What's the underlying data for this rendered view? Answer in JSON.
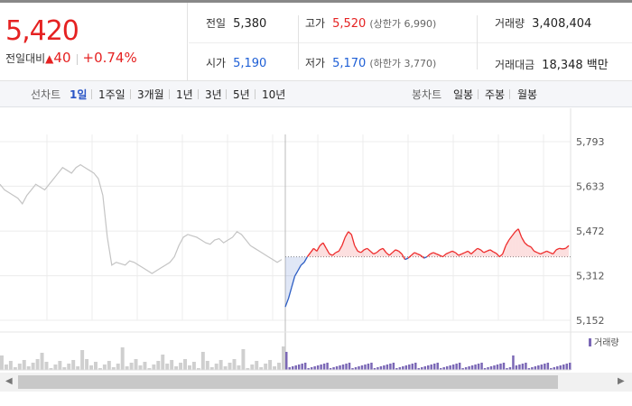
{
  "quote": {
    "price": "5,420",
    "change_label": "전일대비",
    "change_arrow": "▲",
    "change_value": "40",
    "change_pct": "+0.74%"
  },
  "stats": {
    "prev_close_label": "전일",
    "prev_close": "5,380",
    "high_label": "고가",
    "high": "5,520",
    "upper_limit": "(상한가 6,990)",
    "volume_label": "거래량",
    "volume": "3,408,404",
    "open_label": "시가",
    "open": "5,190",
    "low_label": "저가",
    "low": "5,170",
    "lower_limit": "(하한가 3,770)",
    "amount_label": "거래대금",
    "amount": "18,348 백만"
  },
  "tabs": {
    "line_label": "선차트",
    "line_periods": [
      "1일",
      "1주일",
      "3개월",
      "1년",
      "3년",
      "5년",
      "10년"
    ],
    "line_active_index": 0,
    "candle_label": "봉차트",
    "candle_periods": [
      "일봉",
      "주봉",
      "월봉"
    ]
  },
  "chart_data": {
    "type": "line",
    "y_ticks": [
      "5,793",
      "5,633",
      "5,472",
      "5,312",
      "5,152"
    ],
    "ylim": [
      5152,
      5793
    ],
    "reference_price": 5380,
    "volume_legend": "거래량",
    "colors": {
      "up": "#ee2b2b",
      "down": "#2d5ec4",
      "previous": "#c4c4c4",
      "volume_prev": "#cfcfcf",
      "volume_today": "#7b68b6"
    },
    "grid": true,
    "previous_day": [
      5640,
      5620,
      5610,
      5600,
      5590,
      5570,
      5600,
      5620,
      5640,
      5630,
      5620,
      5640,
      5660,
      5680,
      5700,
      5690,
      5680,
      5700,
      5710,
      5700,
      5690,
      5680,
      5660,
      5600,
      5450,
      5350,
      5360,
      5355,
      5350,
      5365,
      5360,
      5350,
      5340,
      5330,
      5320,
      5330,
      5340,
      5350,
      5360,
      5380,
      5420,
      5450,
      5460,
      5455,
      5450,
      5440,
      5430,
      5425,
      5440,
      5445,
      5430,
      5440,
      5450,
      5470,
      5460,
      5440,
      5420,
      5410,
      5400,
      5390,
      5380,
      5370,
      5360,
      5370
    ],
    "today": [
      5200,
      5230,
      5270,
      5310,
      5330,
      5350,
      5360,
      5380,
      5395,
      5410,
      5400,
      5420,
      5430,
      5410,
      5390,
      5385,
      5395,
      5400,
      5420,
      5450,
      5470,
      5460,
      5420,
      5400,
      5395,
      5405,
      5410,
      5400,
      5390,
      5395,
      5405,
      5410,
      5395,
      5385,
      5395,
      5405,
      5400,
      5390,
      5370,
      5375,
      5385,
      5395,
      5390,
      5385,
      5375,
      5380,
      5390,
      5395,
      5390,
      5385,
      5380,
      5390,
      5395,
      5400,
      5395,
      5385,
      5390,
      5395,
      5400,
      5390,
      5400,
      5410,
      5405,
      5395,
      5400,
      5405,
      5398,
      5392,
      5380,
      5390,
      5420,
      5440,
      5455,
      5470,
      5480,
      5450,
      5430,
      5420,
      5415,
      5400,
      5395,
      5390,
      5395,
      5400,
      5395,
      5390,
      5405,
      5410,
      5408,
      5410,
      5420
    ]
  }
}
